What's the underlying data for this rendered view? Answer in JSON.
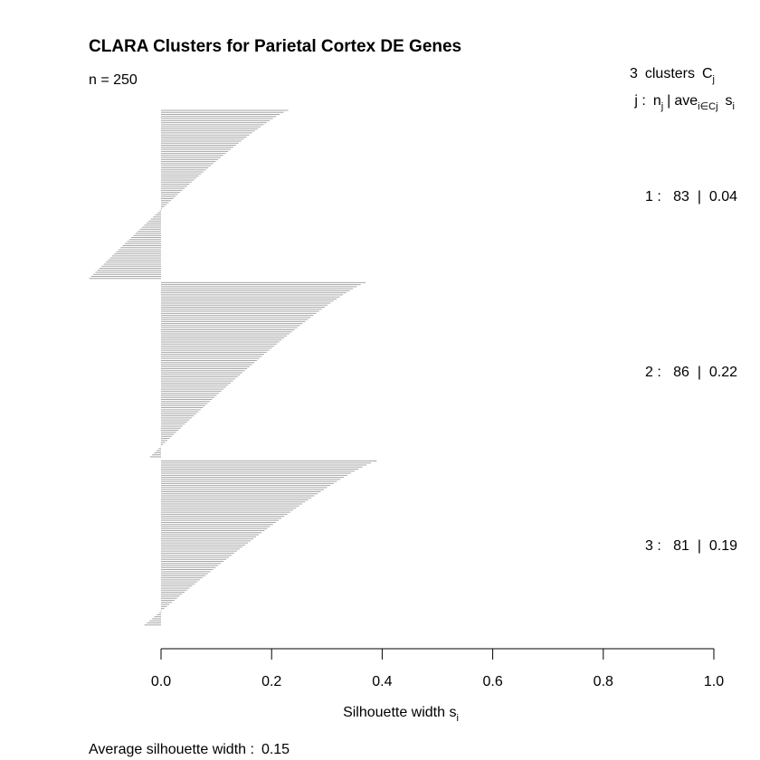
{
  "chart_data": {
    "type": "bar",
    "orientation": "horizontal",
    "title": "CLARA Clusters for Parietal Cortex DE Genes",
    "n_label": "n = 250",
    "header": {
      "clusters_count": "3",
      "clusters_word": "clusters",
      "cj_symbol": "C",
      "cj_sub": "j",
      "j_text": "j :",
      "n_text": "n",
      "n_sub": "j",
      "sep": "|",
      "ave_text": "ave",
      "ave_sub": "i∈Cj",
      "s_text": "s",
      "s_sub": "i"
    },
    "xlabel_main": "Silhouette width s",
    "xlabel_sub": "i",
    "xlim": [
      0,
      1
    ],
    "xticks": [
      "0.0",
      "0.2",
      "0.4",
      "0.6",
      "0.8",
      "1.0"
    ],
    "bar_color": "#a6a6a6",
    "average_label": "Average silhouette width :",
    "average_value": "0.15",
    "clusters": [
      {
        "id": "1",
        "size": "83",
        "avg": "0.04",
        "label": "1 :   83  |  0.04",
        "min": -0.13,
        "max": 0.23
      },
      {
        "id": "2",
        "size": "86",
        "avg": "0.22",
        "label": "2 :   86  |  0.22",
        "min": -0.02,
        "max": 0.37
      },
      {
        "id": "3",
        "size": "81",
        "avg": "0.19",
        "label": "3 :   81  |  0.19",
        "min": -0.03,
        "max": 0.39
      }
    ]
  }
}
